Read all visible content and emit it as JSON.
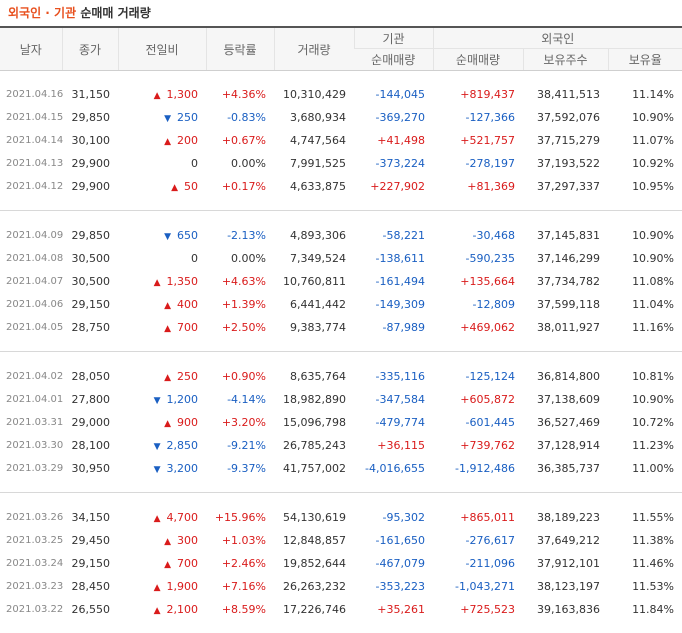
{
  "title": {
    "accent": "외국인 · 기관",
    "rest": "순매매 거래량"
  },
  "headers": {
    "date": "날자",
    "close": "종가",
    "change": "전일비",
    "rate": "등락률",
    "volume": "거래량",
    "institution": "기관",
    "foreigner": "외국인",
    "inst_net": "순매매량",
    "frgn_net": "순매매량",
    "frgn_hold": "보유주수",
    "frgn_ratio": "보유율"
  },
  "colors": {
    "up": "#d91b1b",
    "down": "#1a5fc2",
    "accent": "#e8501e"
  },
  "groups": [
    [
      {
        "date": "2021.04.16",
        "close": "31,150",
        "dir": "up",
        "change": "1,300",
        "rate": "+4.36%",
        "volume": "10,310,429",
        "inst": "-144,045",
        "frgn": "+819,437",
        "hold": "38,411,513",
        "ratio": "11.14%"
      },
      {
        "date": "2021.04.15",
        "close": "29,850",
        "dir": "down",
        "change": "250",
        "rate": "-0.83%",
        "volume": "3,680,934",
        "inst": "-369,270",
        "frgn": "-127,366",
        "hold": "37,592,076",
        "ratio": "10.90%"
      },
      {
        "date": "2021.04.14",
        "close": "30,100",
        "dir": "up",
        "change": "200",
        "rate": "+0.67%",
        "volume": "4,747,564",
        "inst": "+41,498",
        "frgn": "+521,757",
        "hold": "37,715,279",
        "ratio": "11.07%"
      },
      {
        "date": "2021.04.13",
        "close": "29,900",
        "dir": "none",
        "change": "0",
        "rate": "0.00%",
        "volume": "7,991,525",
        "inst": "-373,224",
        "frgn": "-278,197",
        "hold": "37,193,522",
        "ratio": "10.92%"
      },
      {
        "date": "2021.04.12",
        "close": "29,900",
        "dir": "up",
        "change": "50",
        "rate": "+0.17%",
        "volume": "4,633,875",
        "inst": "+227,902",
        "frgn": "+81,369",
        "hold": "37,297,337",
        "ratio": "10.95%"
      }
    ],
    [
      {
        "date": "2021.04.09",
        "close": "29,850",
        "dir": "down",
        "change": "650",
        "rate": "-2.13%",
        "volume": "4,893,306",
        "inst": "-58,221",
        "frgn": "-30,468",
        "hold": "37,145,831",
        "ratio": "10.90%"
      },
      {
        "date": "2021.04.08",
        "close": "30,500",
        "dir": "none",
        "change": "0",
        "rate": "0.00%",
        "volume": "7,349,524",
        "inst": "-138,611",
        "frgn": "-590,235",
        "hold": "37,146,299",
        "ratio": "10.90%"
      },
      {
        "date": "2021.04.07",
        "close": "30,500",
        "dir": "up",
        "change": "1,350",
        "rate": "+4.63%",
        "volume": "10,760,811",
        "inst": "-161,494",
        "frgn": "+135,664",
        "hold": "37,734,782",
        "ratio": "11.08%"
      },
      {
        "date": "2021.04.06",
        "close": "29,150",
        "dir": "up",
        "change": "400",
        "rate": "+1.39%",
        "volume": "6,441,442",
        "inst": "-149,309",
        "frgn": "-12,809",
        "hold": "37,599,118",
        "ratio": "11.04%"
      },
      {
        "date": "2021.04.05",
        "close": "28,750",
        "dir": "up",
        "change": "700",
        "rate": "+2.50%",
        "volume": "9,383,774",
        "inst": "-87,989",
        "frgn": "+469,062",
        "hold": "38,011,927",
        "ratio": "11.16%"
      }
    ],
    [
      {
        "date": "2021.04.02",
        "close": "28,050",
        "dir": "up",
        "change": "250",
        "rate": "+0.90%",
        "volume": "8,635,764",
        "inst": "-335,116",
        "frgn": "-125,124",
        "hold": "36,814,800",
        "ratio": "10.81%"
      },
      {
        "date": "2021.04.01",
        "close": "27,800",
        "dir": "down",
        "change": "1,200",
        "rate": "-4.14%",
        "volume": "18,982,890",
        "inst": "-347,584",
        "frgn": "+605,872",
        "hold": "37,138,609",
        "ratio": "10.90%"
      },
      {
        "date": "2021.03.31",
        "close": "29,000",
        "dir": "up",
        "change": "900",
        "rate": "+3.20%",
        "volume": "15,096,798",
        "inst": "-479,774",
        "frgn": "-601,445",
        "hold": "36,527,469",
        "ratio": "10.72%"
      },
      {
        "date": "2021.03.30",
        "close": "28,100",
        "dir": "down",
        "change": "2,850",
        "rate": "-9.21%",
        "volume": "26,785,243",
        "inst": "+36,115",
        "frgn": "+739,762",
        "hold": "37,128,914",
        "ratio": "11.23%"
      },
      {
        "date": "2021.03.29",
        "close": "30,950",
        "dir": "down",
        "change": "3,200",
        "rate": "-9.37%",
        "volume": "41,757,002",
        "inst": "-4,016,655",
        "frgn": "-1,912,486",
        "hold": "36,385,737",
        "ratio": "11.00%"
      }
    ],
    [
      {
        "date": "2021.03.26",
        "close": "34,150",
        "dir": "up",
        "change": "4,700",
        "rate": "+15.96%",
        "volume": "54,130,619",
        "inst": "-95,302",
        "frgn": "+865,011",
        "hold": "38,189,223",
        "ratio": "11.55%"
      },
      {
        "date": "2021.03.25",
        "close": "29,450",
        "dir": "up",
        "change": "300",
        "rate": "+1.03%",
        "volume": "12,848,857",
        "inst": "-161,650",
        "frgn": "-276,617",
        "hold": "37,649,212",
        "ratio": "11.38%"
      },
      {
        "date": "2021.03.24",
        "close": "29,150",
        "dir": "up",
        "change": "700",
        "rate": "+2.46%",
        "volume": "19,852,644",
        "inst": "-467,079",
        "frgn": "-211,096",
        "hold": "37,912,101",
        "ratio": "11.46%"
      },
      {
        "date": "2021.03.23",
        "close": "28,450",
        "dir": "up",
        "change": "1,900",
        "rate": "+7.16%",
        "volume": "26,263,232",
        "inst": "-353,223",
        "frgn": "-1,043,271",
        "hold": "38,123,197",
        "ratio": "11.53%"
      },
      {
        "date": "2021.03.22",
        "close": "26,550",
        "dir": "up",
        "change": "2,100",
        "rate": "+8.59%",
        "volume": "17,226,746",
        "inst": "+35,261",
        "frgn": "+725,523",
        "hold": "39,163,836",
        "ratio": "11.84%"
      }
    ]
  ]
}
